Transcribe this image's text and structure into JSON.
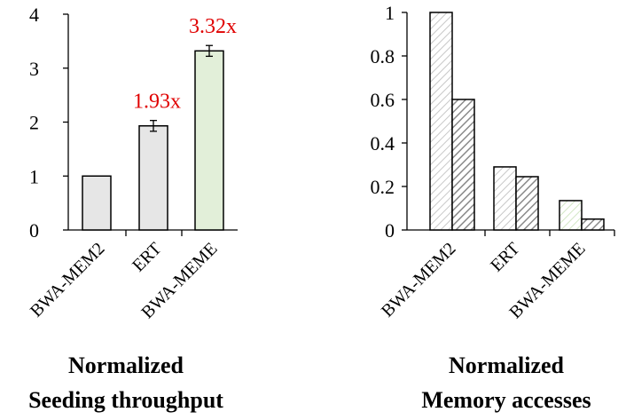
{
  "chart_data": [
    {
      "type": "bar",
      "title": [
        "Normalized",
        "Seeding throughput"
      ],
      "categories": [
        "BWA-MEM2",
        "ERT",
        "BWA-MEME"
      ],
      "values": [
        1.0,
        1.93,
        3.32
      ],
      "error": [
        0,
        0.1,
        0.1
      ],
      "annotations": [
        "",
        "1.93x",
        "3.32x"
      ],
      "bar_colors": [
        "#e6e6e6",
        "#e6e6e6",
        "#e2efd9"
      ],
      "annotation_color": "#e00000",
      "ylim": [
        0,
        4
      ],
      "yticks": [
        0,
        1,
        2,
        3,
        4
      ],
      "ytick_labels": [
        "0",
        "1",
        "2",
        "3",
        "4"
      ],
      "grid": false,
      "legend": "none"
    },
    {
      "type": "bar",
      "title": [
        "Normalized",
        "Memory accesses"
      ],
      "categories": [
        "BWA-MEM2",
        "ERT",
        "BWA-MEME"
      ],
      "series": [
        {
          "values": [
            1.0,
            0.29,
            0.135
          ],
          "pattern": "light-hatch"
        },
        {
          "values": [
            0.6,
            0.245,
            0.05
          ],
          "pattern": "dark-hatch"
        }
      ],
      "ylim": [
        0,
        1
      ],
      "yticks": [
        0,
        0.2,
        0.4,
        0.6,
        0.8,
        1
      ],
      "ytick_labels": [
        "0",
        "0.2",
        "0.4",
        "0.6",
        "0.8",
        "1"
      ],
      "grid": false,
      "legend": "none"
    }
  ]
}
